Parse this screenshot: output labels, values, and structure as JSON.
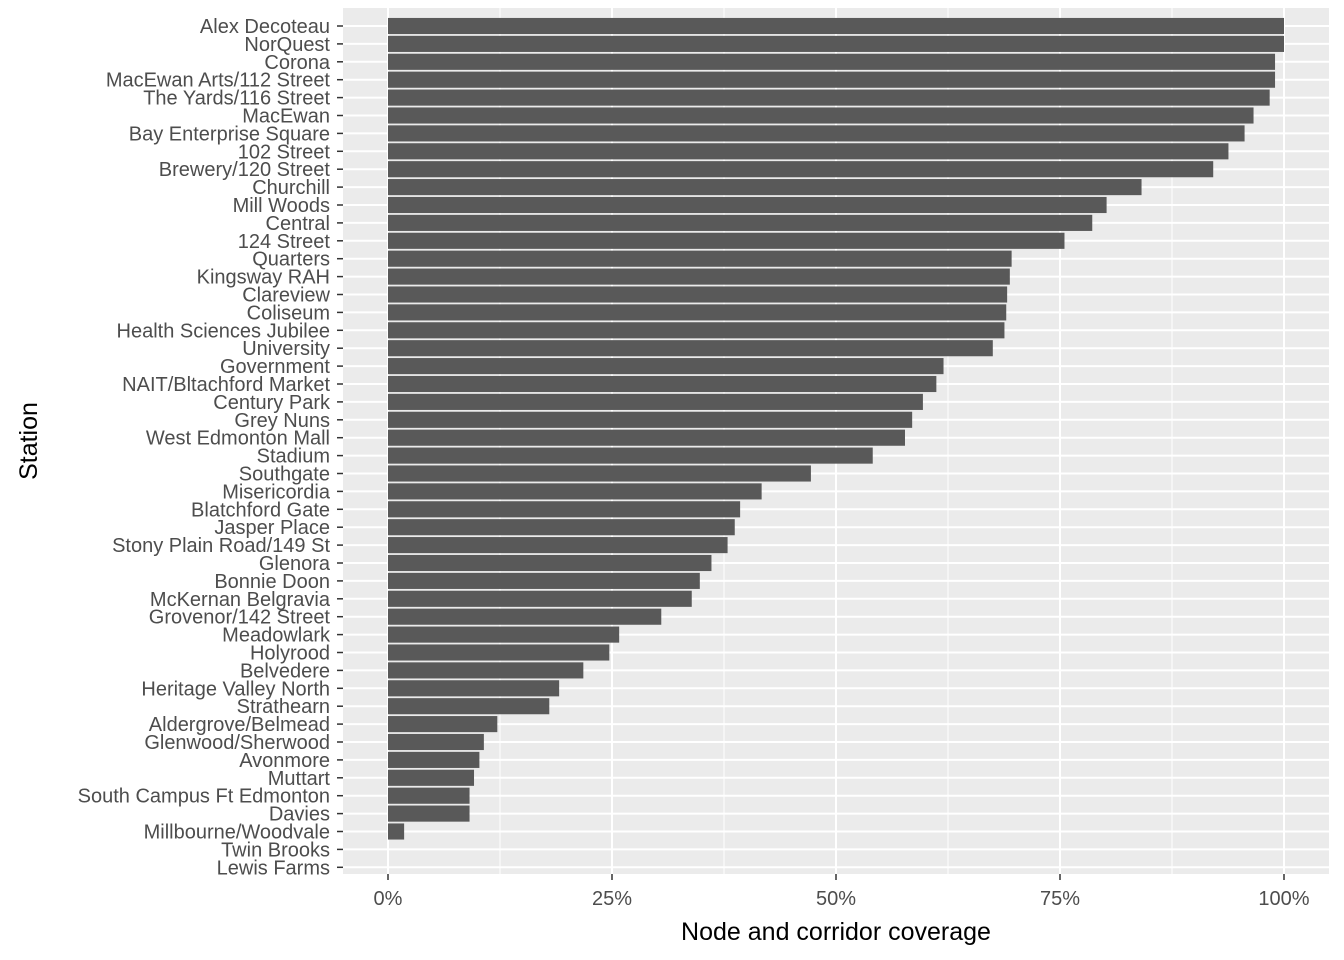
{
  "chart_data": {
    "type": "bar",
    "orientation": "horizontal",
    "xlabel": "Node and corridor coverage",
    "ylabel": "Station",
    "xlim": [
      -0.05,
      1.05
    ],
    "x_ticks": [
      0,
      0.25,
      0.5,
      0.75,
      1.0
    ],
    "x_tick_labels": [
      "0%",
      "25%",
      "50%",
      "75%",
      "100%"
    ],
    "grid": true,
    "legend": "none",
    "colors": {
      "bar": "#595959",
      "panel": "#ebebeb",
      "grid": "#ffffff"
    },
    "categories": [
      "Alex Decoteau",
      "NorQuest",
      "Corona",
      "MacEwan Arts/112 Street",
      "The Yards/116 Street",
      "MacEwan",
      "Bay Enterprise Square",
      "102 Street",
      "Brewery/120 Street",
      "Churchill",
      "Mill Woods",
      "Central",
      "124 Street",
      "Quarters",
      "Kingsway RAH",
      "Clareview",
      "Coliseum",
      "Health Sciences Jubilee",
      "University",
      "Government",
      "NAIT/Bltachford Market",
      "Century Park",
      "Grey Nuns",
      "West Edmonton Mall",
      "Stadium",
      "Southgate",
      "Misericordia",
      "Blatchford Gate",
      "Jasper Place",
      "Stony Plain Road/149 St",
      "Glenora",
      "Bonnie Doon",
      "McKernan Belgravia",
      "Grovenor/142 Street",
      "Meadowlark",
      "Holyrood",
      "Belvedere",
      "Heritage Valley North",
      "Strathearn",
      "Aldergrove/Belmead",
      "Glenwood/Sherwood",
      "Avonmore",
      "Muttart",
      "South Campus Ft Edmonton",
      "Davies",
      "Millbourne/Woodvale",
      "Twin Brooks",
      "Lewis Farms"
    ],
    "values": [
      1.0,
      1.0,
      0.99,
      0.99,
      0.984,
      0.966,
      0.956,
      0.938,
      0.921,
      0.841,
      0.802,
      0.786,
      0.755,
      0.696,
      0.694,
      0.691,
      0.69,
      0.688,
      0.675,
      0.62,
      0.612,
      0.597,
      0.585,
      0.577,
      0.541,
      0.472,
      0.417,
      0.393,
      0.387,
      0.379,
      0.361,
      0.348,
      0.339,
      0.305,
      0.258,
      0.247,
      0.218,
      0.191,
      0.18,
      0.122,
      0.107,
      0.102,
      0.096,
      0.091,
      0.091,
      0.018,
      0.0,
      0.0
    ]
  }
}
